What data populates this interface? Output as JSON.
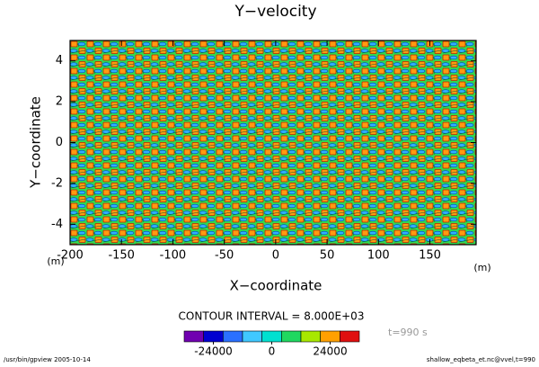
{
  "chart_data": {
    "type": "contour",
    "title": "Y−velocity",
    "x_label": "X−coordinate",
    "y_label": "Y−coordinate",
    "x_unit": "(m)",
    "y_unit": "(m)",
    "xlim": [
      -200,
      195
    ],
    "xticks": [
      -200,
      -150,
      -100,
      -50,
      0,
      50,
      100,
      150
    ],
    "ylim": [
      -5,
      5
    ],
    "yticks": [
      -4,
      -2,
      0,
      2,
      4
    ],
    "contour_interval": "CONTOUR INTERVAL = 8.000E+03",
    "time_label": "t=990 s",
    "colorbar": {
      "lim": [
        -36000,
        36000
      ],
      "levels": [
        -36000,
        -28000,
        -20000,
        -12000,
        -4000,
        4000,
        12000,
        20000,
        28000,
        36000
      ],
      "colors": [
        "#7000b0",
        "#0000d0",
        "#2a70ff",
        "#40c8ff",
        "#00e0d0",
        "#20d860",
        "#a8e800",
        "#ffa000",
        "#e01010"
      ],
      "ticks": [
        -24000,
        0,
        24000
      ]
    },
    "footer_left": "/usr/bin/gpview   2005-10-14",
    "footer_right": "shallow_eqbeta_et.nc@vvel,t=990"
  }
}
